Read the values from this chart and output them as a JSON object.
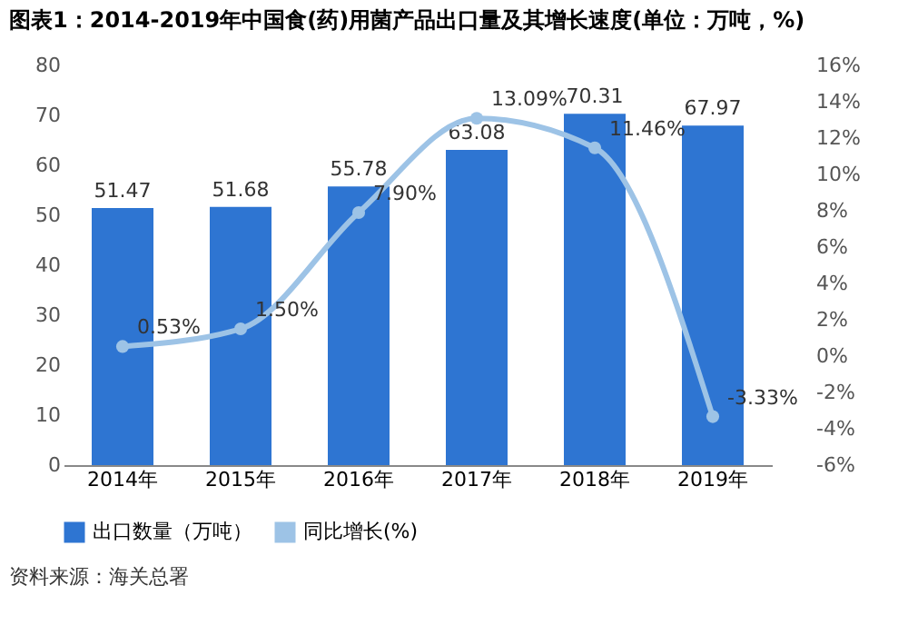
{
  "chart_data": {
    "type": "bar",
    "title": "图表1：2014-2019年中国食(药)用菌产品出口量及其增长速度(单位：万吨，%)",
    "categories": [
      "2014年",
      "2015年",
      "2016年",
      "2017年",
      "2018年",
      "2019年"
    ],
    "series": [
      {
        "name": "出口数量（万吨）",
        "color": "#2e75d2",
        "values": [
          51.47,
          51.68,
          55.78,
          63.08,
          70.31,
          67.97
        ],
        "value_labels": [
          "51.47",
          "51.68",
          "55.78",
          "63.08",
          "70.31",
          "67.97"
        ]
      },
      {
        "name": "同比增长(%)",
        "type": "line",
        "axis": "y2",
        "color": "#9dc3e6",
        "values": [
          0.53,
          1.5,
          7.9,
          13.09,
          11.46,
          -3.33
        ],
        "value_labels": [
          "0.53%",
          "1.50%",
          "7.90%",
          "13.09%",
          "11.46%",
          "-3.33%"
        ]
      }
    ],
    "ylim": [
      0,
      80
    ],
    "yticks": [
      0,
      10,
      20,
      30,
      40,
      50,
      60,
      70,
      80
    ],
    "y2lim": [
      -6,
      16
    ],
    "y2ticks": [
      {
        "value": -6,
        "label": "-6%"
      },
      {
        "value": -4,
        "label": "-4%"
      },
      {
        "value": -2,
        "label": "-2%"
      },
      {
        "value": 0,
        "label": "0%"
      },
      {
        "value": 2,
        "label": "2%"
      },
      {
        "value": 4,
        "label": "4%"
      },
      {
        "value": 6,
        "label": "6%"
      },
      {
        "value": 8,
        "label": "8%"
      },
      {
        "value": 10,
        "label": "10%"
      },
      {
        "value": 12,
        "label": "12%"
      },
      {
        "value": 14,
        "label": "14%"
      },
      {
        "value": 16,
        "label": "16%"
      }
    ],
    "marker": "circle",
    "legend": "bottom",
    "grid": false,
    "annotations": [
      "资料来源：海关总署"
    ]
  }
}
